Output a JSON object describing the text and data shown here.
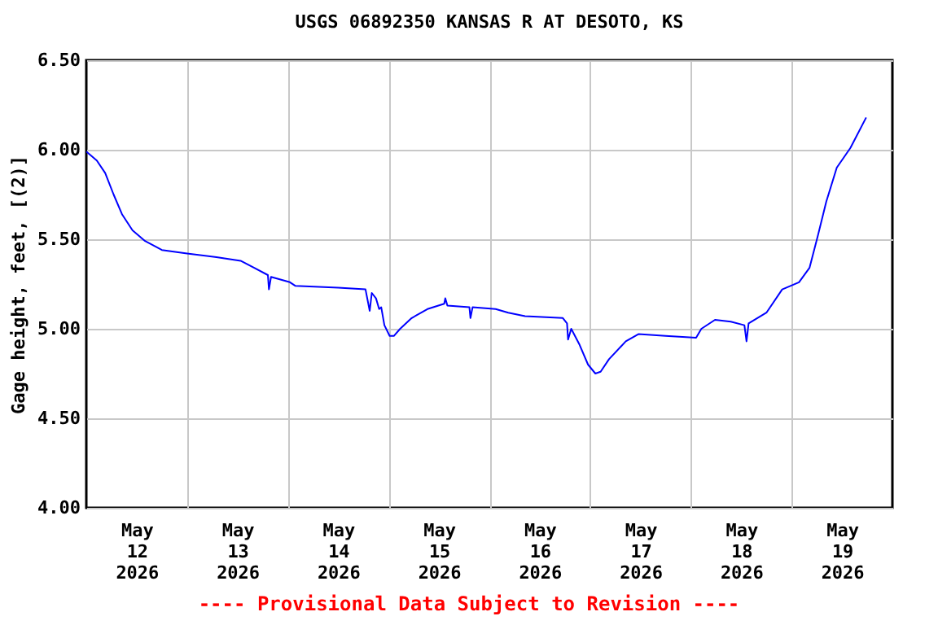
{
  "chart_data": {
    "type": "line",
    "title": "USGS 06892350 KANSAS R AT DESOTO, KS",
    "ylabel": "Gage height, feet, [(2)]",
    "annotations": [
      "---- Provisional Data Subject to Revision ----"
    ],
    "x": [
      "2026-05-12T00:00",
      "2026-05-12T02:30",
      "2026-05-12T04:30",
      "2026-05-12T06:30",
      "2026-05-12T08:30",
      "2026-05-12T11:00",
      "2026-05-12T14:00",
      "2026-05-12T18:00",
      "2026-05-13T00:00",
      "2026-05-13T07:00",
      "2026-05-13T12:45",
      "2026-05-13T16:00",
      "2026-05-13T19:15",
      "2026-05-13T19:30",
      "2026-05-13T20:00",
      "2026-05-14T00:30",
      "2026-05-14T01:45",
      "2026-05-14T12:00",
      "2026-05-14T18:30",
      "2026-05-14T19:30",
      "2026-05-14T20:00",
      "2026-05-14T21:00",
      "2026-05-14T21:45",
      "2026-05-14T22:15",
      "2026-05-14T23:00",
      "2026-05-15T00:15",
      "2026-05-15T01:15",
      "2026-05-15T02:45",
      "2026-05-15T05:30",
      "2026-05-15T09:15",
      "2026-05-15T13:15",
      "2026-05-15T13:30",
      "2026-05-15T14:00",
      "2026-05-15T19:15",
      "2026-05-15T19:30",
      "2026-05-15T20:00",
      "2026-05-16T01:30",
      "2026-05-16T04:30",
      "2026-05-16T08:30",
      "2026-05-16T17:30",
      "2026-05-16T18:30",
      "2026-05-16T18:45",
      "2026-05-16T19:30",
      "2026-05-16T21:30",
      "2026-05-16T23:30",
      "2026-05-17T01:15",
      "2026-05-17T02:30",
      "2026-05-17T04:30",
      "2026-05-17T08:30",
      "2026-05-17T11:30",
      "2026-05-17T18:00",
      "2026-05-18T01:15",
      "2026-05-18T02:30",
      "2026-05-18T05:45",
      "2026-05-18T09:30",
      "2026-05-18T12:45",
      "2026-05-18T13:15",
      "2026-05-18T13:45",
      "2026-05-18T18:00",
      "2026-05-18T21:45",
      "2026-05-19T01:45",
      "2026-05-19T04:15",
      "2026-05-19T06:15",
      "2026-05-19T08:15",
      "2026-05-19T10:45",
      "2026-05-19T14:00",
      "2026-05-19T17:45"
    ],
    "series": [
      {
        "color": "#0000ff",
        "values": [
          5.99,
          5.94,
          5.87,
          5.75,
          5.64,
          5.55,
          5.49,
          5.44,
          5.42,
          5.4,
          5.38,
          5.34,
          5.3,
          5.22,
          5.29,
          5.26,
          5.24,
          5.23,
          5.22,
          5.1,
          5.2,
          5.17,
          5.11,
          5.12,
          5.02,
          4.96,
          4.96,
          5.0,
          5.06,
          5.11,
          5.14,
          5.17,
          5.13,
          5.12,
          5.06,
          5.12,
          5.11,
          5.09,
          5.07,
          5.06,
          5.03,
          4.94,
          5.0,
          4.91,
          4.8,
          4.75,
          4.76,
          4.83,
          4.93,
          4.97,
          4.96,
          4.95,
          5.0,
          5.05,
          5.04,
          5.02,
          4.93,
          5.03,
          5.09,
          5.22,
          5.26,
          5.34,
          5.52,
          5.71,
          5.9,
          6.01,
          6.18
        ]
      }
    ],
    "xlim": [
      "2026-05-12T00:00",
      "2026-05-20T00:00"
    ],
    "xticks": [
      {
        "value": "2026-05-12T12:00",
        "label": "May\n12\n2026"
      },
      {
        "value": "2026-05-13T00:00",
        "label": null
      },
      {
        "value": "2026-05-13T12:00",
        "label": "May\n13\n2026"
      },
      {
        "value": "2026-05-14T00:00",
        "label": null
      },
      {
        "value": "2026-05-14T12:00",
        "label": "May\n14\n2026"
      },
      {
        "value": "2026-05-15T00:00",
        "label": null
      },
      {
        "value": "2026-05-15T12:00",
        "label": "May\n15\n2026"
      },
      {
        "value": "2026-05-16T00:00",
        "label": null
      },
      {
        "value": "2026-05-16T12:00",
        "label": "May\n16\n2026"
      },
      {
        "value": "2026-05-17T00:00",
        "label": null
      },
      {
        "value": "2026-05-17T12:00",
        "label": "May\n17\n2026"
      },
      {
        "value": "2026-05-18T00:00",
        "label": null
      },
      {
        "value": "2026-05-18T12:00",
        "label": "May\n18\n2026"
      },
      {
        "value": "2026-05-19T00:00",
        "label": null
      },
      {
        "value": "2026-05-19T12:00",
        "label": "May\n19\n2026"
      }
    ],
    "ylim": [
      4.0,
      6.5
    ],
    "yticks": [
      {
        "value": 4.0,
        "label": "4.00"
      },
      {
        "value": 4.5,
        "label": "4.50"
      },
      {
        "value": 5.0,
        "label": "5.00"
      },
      {
        "value": 5.5,
        "label": "5.50"
      },
      {
        "value": 6.0,
        "label": "6.00"
      },
      {
        "value": 6.5,
        "label": "6.50"
      }
    ],
    "grid": true,
    "marker": "none",
    "line_style": "solid"
  }
}
